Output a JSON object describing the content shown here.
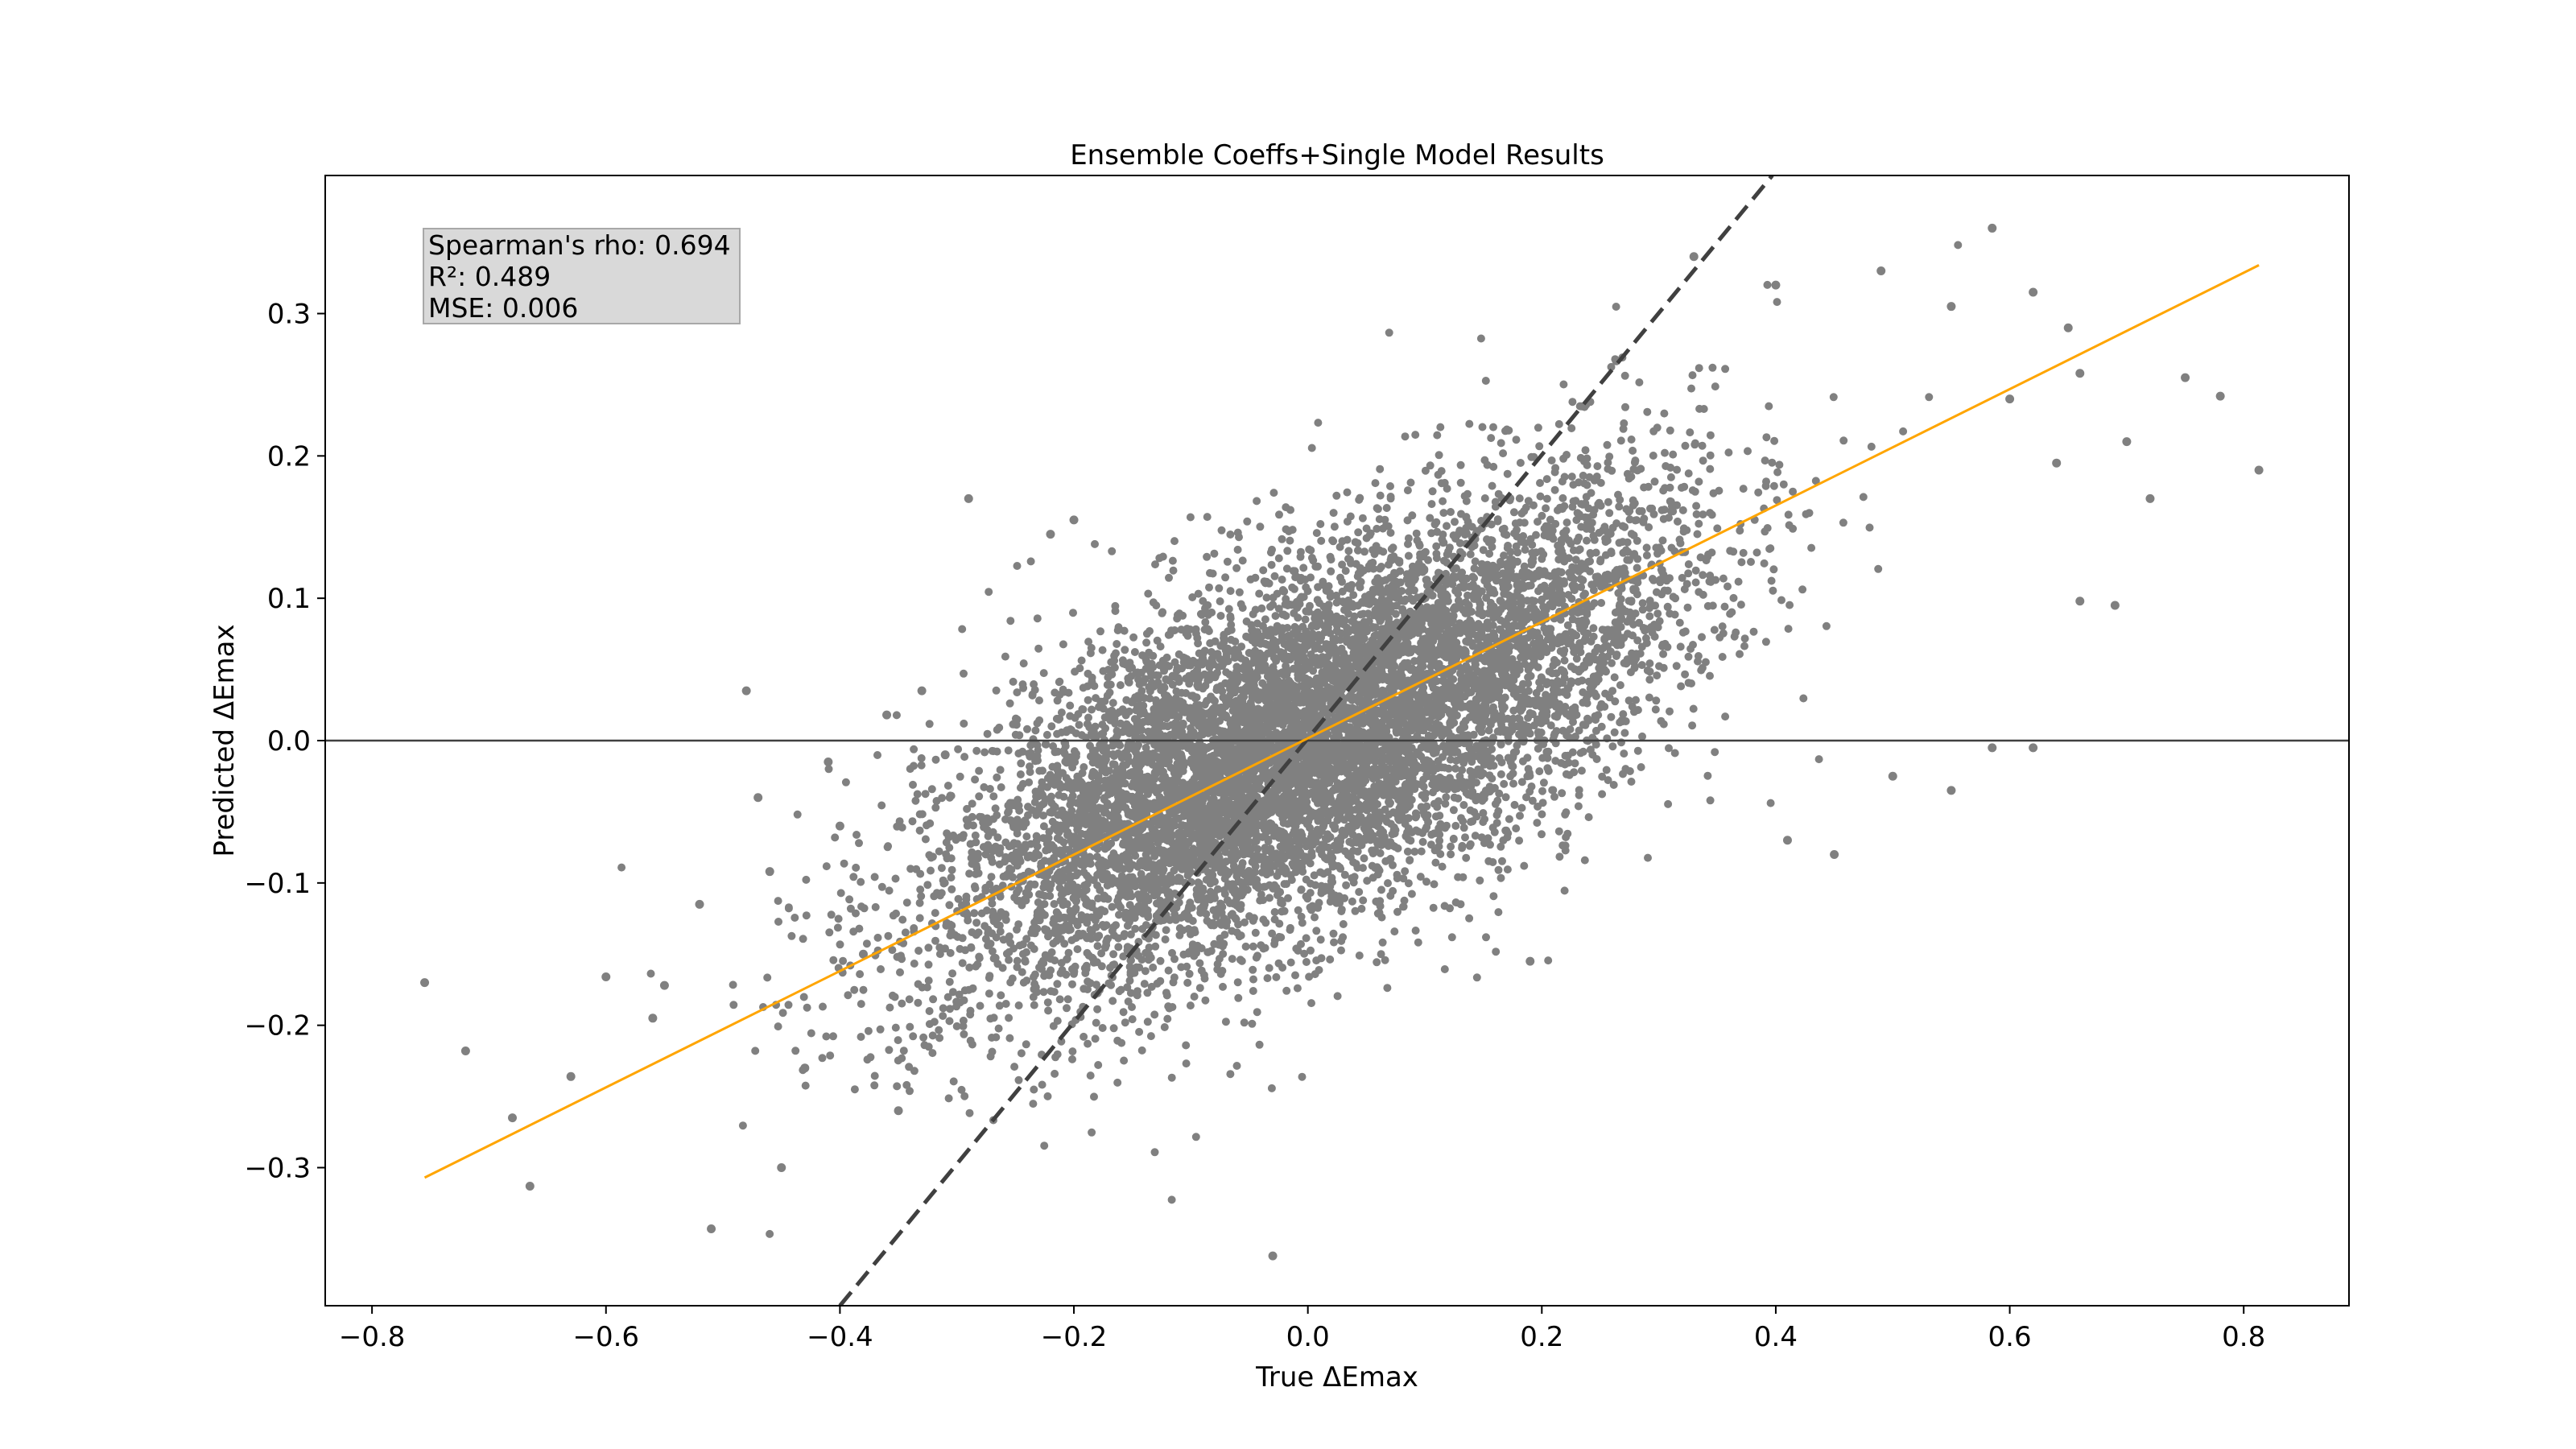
{
  "chart_data": {
    "type": "scatter",
    "title": "Ensemble Coeffs+Single Model Results",
    "xlabel": "True ΔEmax",
    "ylabel": "Predicted ΔEmax",
    "xlim": [
      -0.84,
      0.89
    ],
    "ylim": [
      -0.397,
      0.397
    ],
    "xticks": [
      -0.8,
      -0.6,
      -0.4,
      -0.2,
      0.0,
      0.2,
      0.4,
      0.6,
      0.8
    ],
    "xtick_labels": [
      "−0.8",
      "−0.6",
      "−0.4",
      "−0.2",
      "0.0",
      "0.2",
      "0.4",
      "0.6",
      "0.8"
    ],
    "yticks": [
      -0.3,
      -0.2,
      -0.1,
      0.0,
      0.1,
      0.2,
      0.3
    ],
    "ytick_labels": [
      "−0.3",
      "−0.2",
      "−0.1",
      "0.0",
      "0.1",
      "0.2",
      "0.3"
    ],
    "grid": false,
    "stats": {
      "spearman": "Spearman's rho: 0.694",
      "r2": "R²: 0.489",
      "mse": "MSE: 0.006"
    },
    "point_color": "#808080",
    "fit_line": {
      "color": "#ffa500",
      "x": [
        -0.755,
        0.813
      ],
      "y": [
        -0.307,
        0.334
      ]
    },
    "identity_line": {
      "color": "#404040",
      "style": "dashed",
      "x": [
        -0.4,
        0.397
      ],
      "y": [
        -0.397,
        0.397
      ]
    },
    "zero_line": {
      "color": "#404040",
      "y": 0.0
    },
    "series": [
      {
        "values_xy": [
          [
            -0.755,
            -0.17
          ],
          [
            -0.72,
            -0.218
          ],
          [
            -0.68,
            -0.265
          ],
          [
            -0.665,
            -0.313
          ],
          [
            -0.63,
            -0.236
          ],
          [
            -0.6,
            -0.166
          ],
          [
            -0.56,
            -0.195
          ],
          [
            -0.55,
            -0.172
          ],
          [
            -0.52,
            -0.115
          ],
          [
            -0.51,
            -0.343
          ],
          [
            -0.48,
            0.035
          ],
          [
            -0.47,
            -0.04
          ],
          [
            -0.46,
            -0.092
          ],
          [
            -0.45,
            -0.3
          ],
          [
            -0.43,
            -0.23
          ],
          [
            -0.41,
            -0.015
          ],
          [
            -0.4,
            -0.06
          ],
          [
            -0.38,
            -0.15
          ],
          [
            -0.36,
            0.018
          ],
          [
            -0.35,
            -0.26
          ],
          [
            -0.33,
            0.035
          ],
          [
            -0.31,
            -0.01
          ],
          [
            -0.29,
            0.17
          ],
          [
            -0.22,
            0.145
          ],
          [
            -0.2,
            0.155
          ],
          [
            -0.03,
            -0.362
          ],
          [
            0.19,
            -0.155
          ],
          [
            0.33,
            0.34
          ],
          [
            0.4,
            0.32
          ],
          [
            0.41,
            -0.07
          ],
          [
            0.45,
            -0.08
          ],
          [
            0.49,
            0.33
          ],
          [
            0.55,
            0.305
          ],
          [
            0.585,
            0.36
          ],
          [
            0.6,
            0.24
          ],
          [
            0.62,
            0.315
          ],
          [
            0.64,
            0.195
          ],
          [
            0.65,
            0.29
          ],
          [
            0.69,
            0.095
          ],
          [
            0.7,
            0.21
          ],
          [
            0.72,
            0.17
          ],
          [
            0.75,
            0.255
          ],
          [
            0.78,
            0.242
          ],
          [
            0.813,
            0.19
          ],
          [
            0.66,
            0.098
          ],
          [
            0.585,
            -0.005
          ],
          [
            0.62,
            -0.005
          ],
          [
            0.55,
            -0.035
          ],
          [
            0.5,
            -0.025
          ],
          [
            0.66,
            0.258
          ]
        ]
      }
    ]
  }
}
